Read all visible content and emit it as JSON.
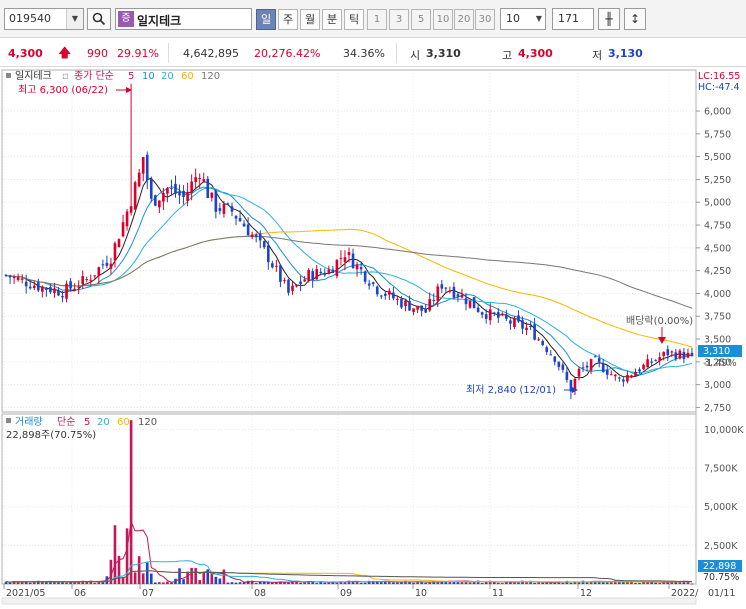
{
  "toolbar": {
    "stock_code": "019540",
    "badge": "증",
    "stock_name": "일지테크",
    "periods": [
      "일",
      "주",
      "월",
      "분",
      "틱"
    ],
    "active_period": "일",
    "numbers": [
      "1",
      "3",
      "5",
      "10",
      "20",
      "30"
    ],
    "count_select": "10",
    "data_count": "171"
  },
  "quote": {
    "price": "4,300",
    "change": "990",
    "change_pct": "29.91%",
    "volume": "4,642,895",
    "volume_pct": "20,276.42%",
    "turnover": "34.36%",
    "open_label": "시",
    "open": "3,310",
    "high_label": "고",
    "high": "4,300",
    "low_label": "저",
    "low": "3,130"
  },
  "price_panel": {
    "legend_name": "일지테크",
    "legend_type": "종가 단순",
    "ma": [
      "5",
      "10",
      "20",
      "60",
      "120"
    ],
    "lc_label": "LC:16.55",
    "hc_label": "HC:-47.4",
    "high_note": "최고 6,300 (06/22)",
    "low_note": "최저 2,840 (12/01)",
    "dividend_note": "배당락(0.00%)",
    "current_price_tag": "3,310",
    "current_pct": "-1.49%",
    "y_ticks": [
      "6,000",
      "5,750",
      "5,500",
      "5,250",
      "5,000",
      "4,750",
      "4,500",
      "4,250",
      "4,000",
      "3,750",
      "3,500",
      "3,250",
      "3,000",
      "2,750"
    ]
  },
  "volume_panel": {
    "legend_name": "거래량",
    "legend_type": "단순",
    "ma": [
      "5",
      "20",
      "60",
      "120"
    ],
    "current_volume": "22,898주(70.75%)",
    "volume_tag": "22,898",
    "pct_tag": "70.75%",
    "y_ticks": [
      "10,000K",
      "7,500K",
      "5,000K",
      "2,500K"
    ]
  },
  "x_axis": {
    "labels": [
      "2021/05",
      "06",
      "07",
      "08",
      "09",
      "10",
      "11",
      "12",
      "2022/",
      "01/11"
    ]
  },
  "colors": {
    "up": "#d9002b",
    "down": "#1d44c8",
    "ma5": "#222222",
    "ma10": "#1a8fd8",
    "ma20": "#2ab4d8",
    "ma60": "#f3b800",
    "ma120": "#777777",
    "volume_up": "#c2185b",
    "volume_down": "#1d44c8"
  },
  "chart_data": {
    "type": "candlestick",
    "price_ylim": [
      2700,
      6450
    ],
    "volume_ylim": [
      0,
      11000000
    ],
    "volume_ma5_last": 22898,
    "high": {
      "label": "최고",
      "value": 6300,
      "date": "06/22"
    },
    "low": {
      "label": "최저",
      "value": 2840,
      "date": "12/01"
    },
    "current": 3310,
    "x_labels": [
      "2021/05",
      "06",
      "07",
      "08",
      "09",
      "10",
      "11",
      "12",
      "2022/",
      "01/11"
    ]
  }
}
